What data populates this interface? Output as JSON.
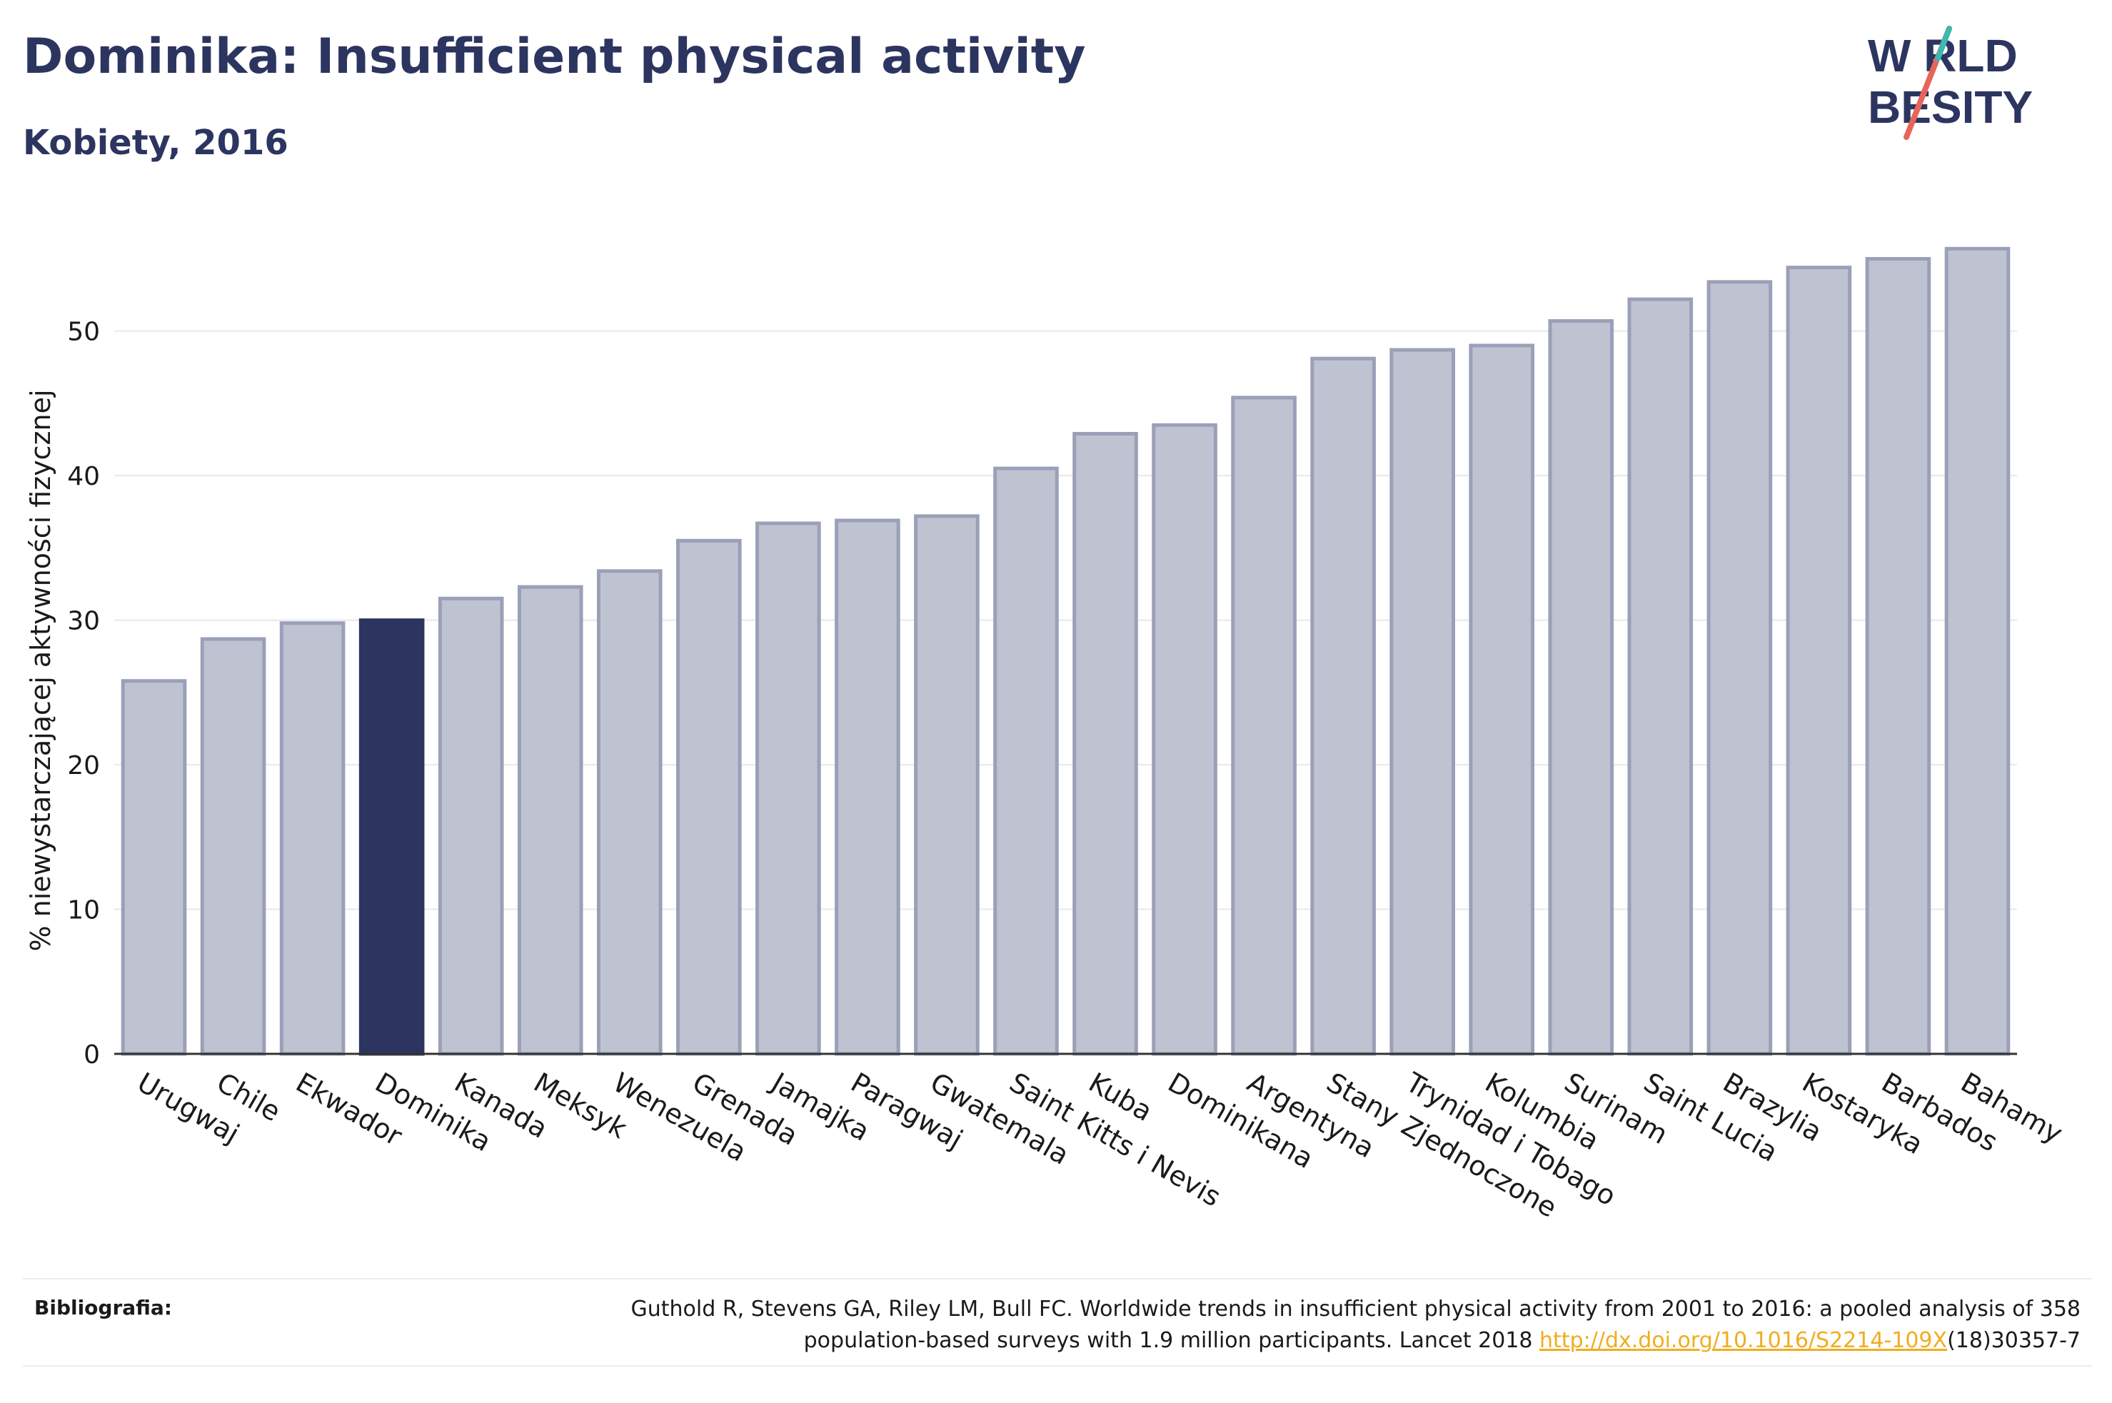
{
  "header": {
    "title": "Dominika: Insufficient physical activity",
    "subtitle": "Kobiety, 2016"
  },
  "logo": {
    "line1": "W RLD",
    "line2": "BESITY",
    "text": "WORLD OBESITY"
  },
  "colors": {
    "title": "#2c3560",
    "bar": "#bfc2d0",
    "bar_edge": "#9aa0b8",
    "highlight": "#2c3560",
    "link": "#f0ad1e"
  },
  "chart_data": {
    "type": "bar",
    "title": "",
    "xlabel": "",
    "ylabel": "% niewystarczającej aktywności fizycznej",
    "ylim": [
      0,
      57
    ],
    "yticks": [
      0,
      10,
      20,
      30,
      40,
      50
    ],
    "grid": true,
    "highlight": "Dominika",
    "categories": [
      "Urugwaj",
      "Chile",
      "Ekwador",
      "Dominika",
      "Kanada",
      "Meksyk",
      "Wenezuela",
      "Grenada",
      "Jamajka",
      "Paragwaj",
      "Gwatemala",
      "Saint Kitts i Nevis",
      "Kuba",
      "Dominikana",
      "Argentyna",
      "Stany Zjednoczone",
      "Trynidad i Tobago",
      "Kolumbia",
      "Surinam",
      "Saint Lucia",
      "Brazylia",
      "Kostaryka",
      "Barbados",
      "Bahamy"
    ],
    "values": [
      25.8,
      28.7,
      29.8,
      30.0,
      31.5,
      32.3,
      33.4,
      35.5,
      36.7,
      36.9,
      37.2,
      40.5,
      42.9,
      43.5,
      45.4,
      48.1,
      48.7,
      49.0,
      50.7,
      52.2,
      53.4,
      54.4,
      55.0,
      55.7
    ]
  },
  "footer": {
    "label": "Bibliografia:",
    "text1": "Guthold R, Stevens GA, Riley LM, Bull FC. Worldwide trends in insufficient physical activity from 2001 to 2016: a pooled analysis of 358",
    "text2": "population-based surveys with 1.9 million participants. Lancet 2018 ",
    "link": "http://dx.doi.org/10.1016/S2214-109X",
    "text3": "(18)30357-7"
  }
}
